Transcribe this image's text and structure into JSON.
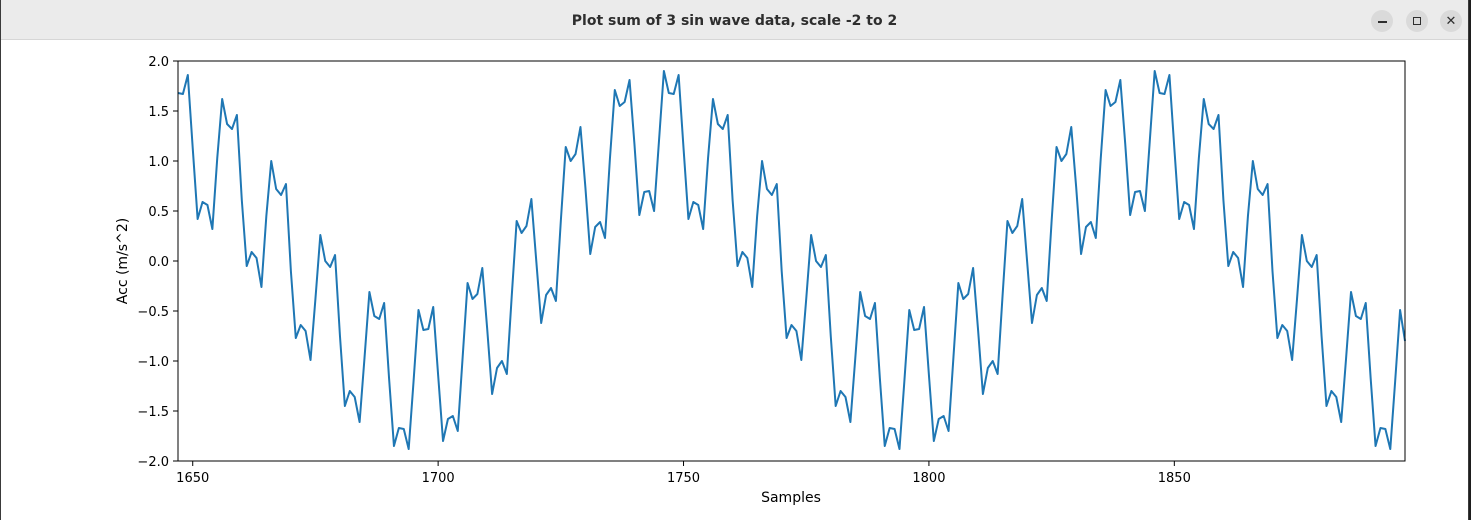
{
  "window": {
    "title": "Plot sum of 3 sin wave data, scale -2 to 2",
    "controls": {
      "minimize": "minimize-icon",
      "maximize": "maximize-icon",
      "close": "close-icon"
    }
  },
  "chart_data": {
    "type": "line",
    "title": "",
    "xlabel": "Samples",
    "ylabel": "Acc (m/s^2)",
    "xlim": [
      1647,
      1897
    ],
    "ylim": [
      -2.0,
      2.0
    ],
    "xticks": [
      1650,
      1700,
      1750,
      1800,
      1850
    ],
    "xtick_labels": [
      "1650",
      "1700",
      "1750",
      "1800",
      "1850"
    ],
    "yticks": [
      -2.0,
      -1.5,
      -1.0,
      -0.5,
      0.0,
      0.5,
      1.0,
      1.5,
      2.0
    ],
    "ytick_labels": [
      "−2.0",
      "−1.5",
      "−1.0",
      "−0.5",
      "0.0",
      "0.5",
      "1.0",
      "1.5",
      "2.0"
    ],
    "grid": false,
    "legend": "none",
    "series": [
      {
        "color": "#1f77b4",
        "x_start": 1647,
        "x_step": 1,
        "values": [
          1.68,
          1.67,
          1.86,
          1.13,
          0.42,
          0.59,
          0.56,
          0.32,
          1.03,
          1.62,
          1.37,
          1.32,
          1.46,
          0.61,
          -0.05,
          0.09,
          0.03,
          -0.26,
          0.45,
          1.0,
          0.72,
          0.66,
          0.77,
          -0.1,
          -0.77,
          -0.64,
          -0.7,
          -0.99,
          -0.38,
          0.26,
          0.0,
          -0.06,
          0.06,
          -0.75,
          -1.45,
          -1.3,
          -1.36,
          -1.61,
          -0.97,
          -0.31,
          -0.55,
          -0.58,
          -0.42,
          -1.17,
          -1.85,
          -1.67,
          -1.68,
          -1.88,
          -1.2,
          -0.49,
          -0.69,
          -0.68,
          -0.46,
          -1.14,
          -1.8,
          -1.58,
          -1.55,
          -1.7,
          -0.96,
          -0.22,
          -0.38,
          -0.33,
          -0.07,
          -0.68,
          -1.33,
          -1.07,
          -1.0,
          -1.13,
          -0.35,
          0.4,
          0.28,
          0.35,
          0.62,
          0.0,
          -0.62,
          -0.34,
          -0.27,
          -0.4,
          0.4,
          1.14,
          1.0,
          1.07,
          1.34,
          0.74,
          0.07,
          0.34,
          0.39,
          0.23,
          1.02,
          1.71,
          1.55,
          1.59,
          1.81,
          1.17,
          0.46,
          0.69,
          0.7,
          0.5,
          1.2,
          1.9,
          1.68,
          1.67,
          1.86,
          1.13,
          0.42,
          0.59,
          0.56,
          0.32,
          1.03,
          1.62,
          1.37,
          1.32,
          1.46,
          0.61,
          -0.05,
          0.09,
          0.03,
          -0.26,
          0.45,
          1.0,
          0.72,
          0.66,
          0.77,
          -0.1,
          -0.77,
          -0.64,
          -0.7,
          -0.99,
          -0.38,
          0.26,
          0.0,
          -0.06,
          0.06,
          -0.75,
          -1.45,
          -1.3,
          -1.36,
          -1.61,
          -0.97,
          -0.31,
          -0.55,
          -0.58,
          -0.42,
          -1.17,
          -1.85,
          -1.67,
          -1.68,
          -1.88,
          -1.2,
          -0.49,
          -0.69,
          -0.68,
          -0.46,
          -1.14,
          -1.8,
          -1.58,
          -1.55,
          -1.7,
          -0.96,
          -0.22,
          -0.38,
          -0.33,
          -0.07,
          -0.68,
          -1.33,
          -1.07,
          -1.0,
          -1.13,
          -0.35,
          0.4,
          0.28,
          0.35,
          0.62,
          0.0,
          -0.62,
          -0.34,
          -0.27,
          -0.4,
          0.4,
          1.14,
          1.0,
          1.07,
          1.34,
          0.74,
          0.07,
          0.34,
          0.39,
          0.23,
          1.02,
          1.71,
          1.55,
          1.59,
          1.81,
          1.17,
          0.46,
          0.69,
          0.7,
          0.5,
          1.2,
          1.9,
          1.68,
          1.67,
          1.86,
          1.13,
          0.42,
          0.59,
          0.56,
          0.32,
          1.03,
          1.62,
          1.37,
          1.32,
          1.46,
          0.61,
          -0.05,
          0.09,
          0.03,
          -0.26,
          0.45,
          1.0,
          0.72,
          0.66,
          0.77,
          -0.1,
          -0.77,
          -0.64,
          -0.7,
          -0.99,
          -0.38,
          0.26,
          0.0,
          -0.06,
          0.06,
          -0.75,
          -1.45,
          -1.3,
          -1.36,
          -1.61,
          -0.97,
          -0.31,
          -0.55,
          -0.58,
          -0.42,
          -1.17,
          -1.85,
          -1.67,
          -1.68,
          -1.88,
          -1.2,
          -0.49,
          -0.8
        ]
      }
    ]
  }
}
